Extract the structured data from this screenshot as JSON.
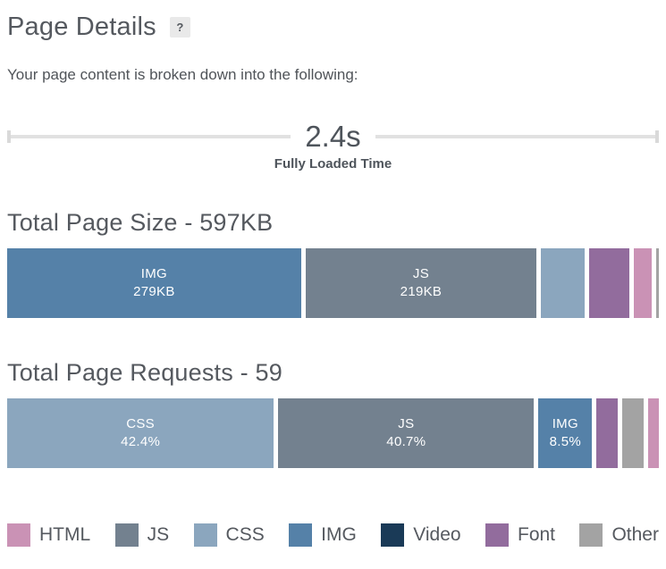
{
  "header": {
    "title": "Page Details",
    "help_icon": "?"
  },
  "subtitle": "Your page content is broken down into the following:",
  "timing": {
    "value": "2.4s",
    "label": "Fully Loaded Time"
  },
  "colors": {
    "HTML": "#CA92B5",
    "JS": "#73818F",
    "CSS": "#8BA6BE",
    "IMG": "#5581A8",
    "Video": "#1A3A57",
    "Font": "#926C9D",
    "Other": "#A3A3A3"
  },
  "chart_data": [
    {
      "type": "bar",
      "title": "Total Page Size - 597KB",
      "total_label": "597KB",
      "units": "KB",
      "segments": [
        {
          "type": "IMG",
          "pct": 46.7,
          "label": "IMG",
          "sublabel": "279KB",
          "value_kb": 279
        },
        {
          "type": "JS",
          "pct": 36.7,
          "label": "JS",
          "sublabel": "219KB",
          "value_kb": 219
        },
        {
          "type": "CSS",
          "pct": 7.0,
          "label": "",
          "sublabel": "",
          "value_kb": 42
        },
        {
          "type": "Font",
          "pct": 6.4,
          "label": "",
          "sublabel": "",
          "value_kb": 38
        },
        {
          "type": "HTML",
          "pct": 2.8,
          "label": "",
          "sublabel": "",
          "value_kb": 17
        },
        {
          "type": "Other",
          "pct": 0.4,
          "label": "",
          "sublabel": "",
          "value_kb": 2
        }
      ]
    },
    {
      "type": "bar",
      "title": "Total Page Requests - 59",
      "total_label": "59",
      "units": "%",
      "segments": [
        {
          "type": "CSS",
          "pct": 42.4,
          "label": "CSS",
          "sublabel": "42.4%",
          "requests": 25
        },
        {
          "type": "JS",
          "pct": 40.7,
          "label": "JS",
          "sublabel": "40.7%",
          "requests": 24
        },
        {
          "type": "IMG",
          "pct": 8.5,
          "label": "IMG",
          "sublabel": "8.5%",
          "requests": 5
        },
        {
          "type": "Font",
          "pct": 3.4,
          "label": "",
          "sublabel": "",
          "requests": 2
        },
        {
          "type": "Other",
          "pct": 3.4,
          "label": "",
          "sublabel": "",
          "requests": 2
        },
        {
          "type": "HTML",
          "pct": 1.7,
          "label": "",
          "sublabel": "",
          "requests": 1
        }
      ]
    }
  ],
  "legend": [
    {
      "label": "HTML"
    },
    {
      "label": "JS"
    },
    {
      "label": "CSS"
    },
    {
      "label": "IMG"
    },
    {
      "label": "Video"
    },
    {
      "label": "Font"
    },
    {
      "label": "Other"
    }
  ]
}
